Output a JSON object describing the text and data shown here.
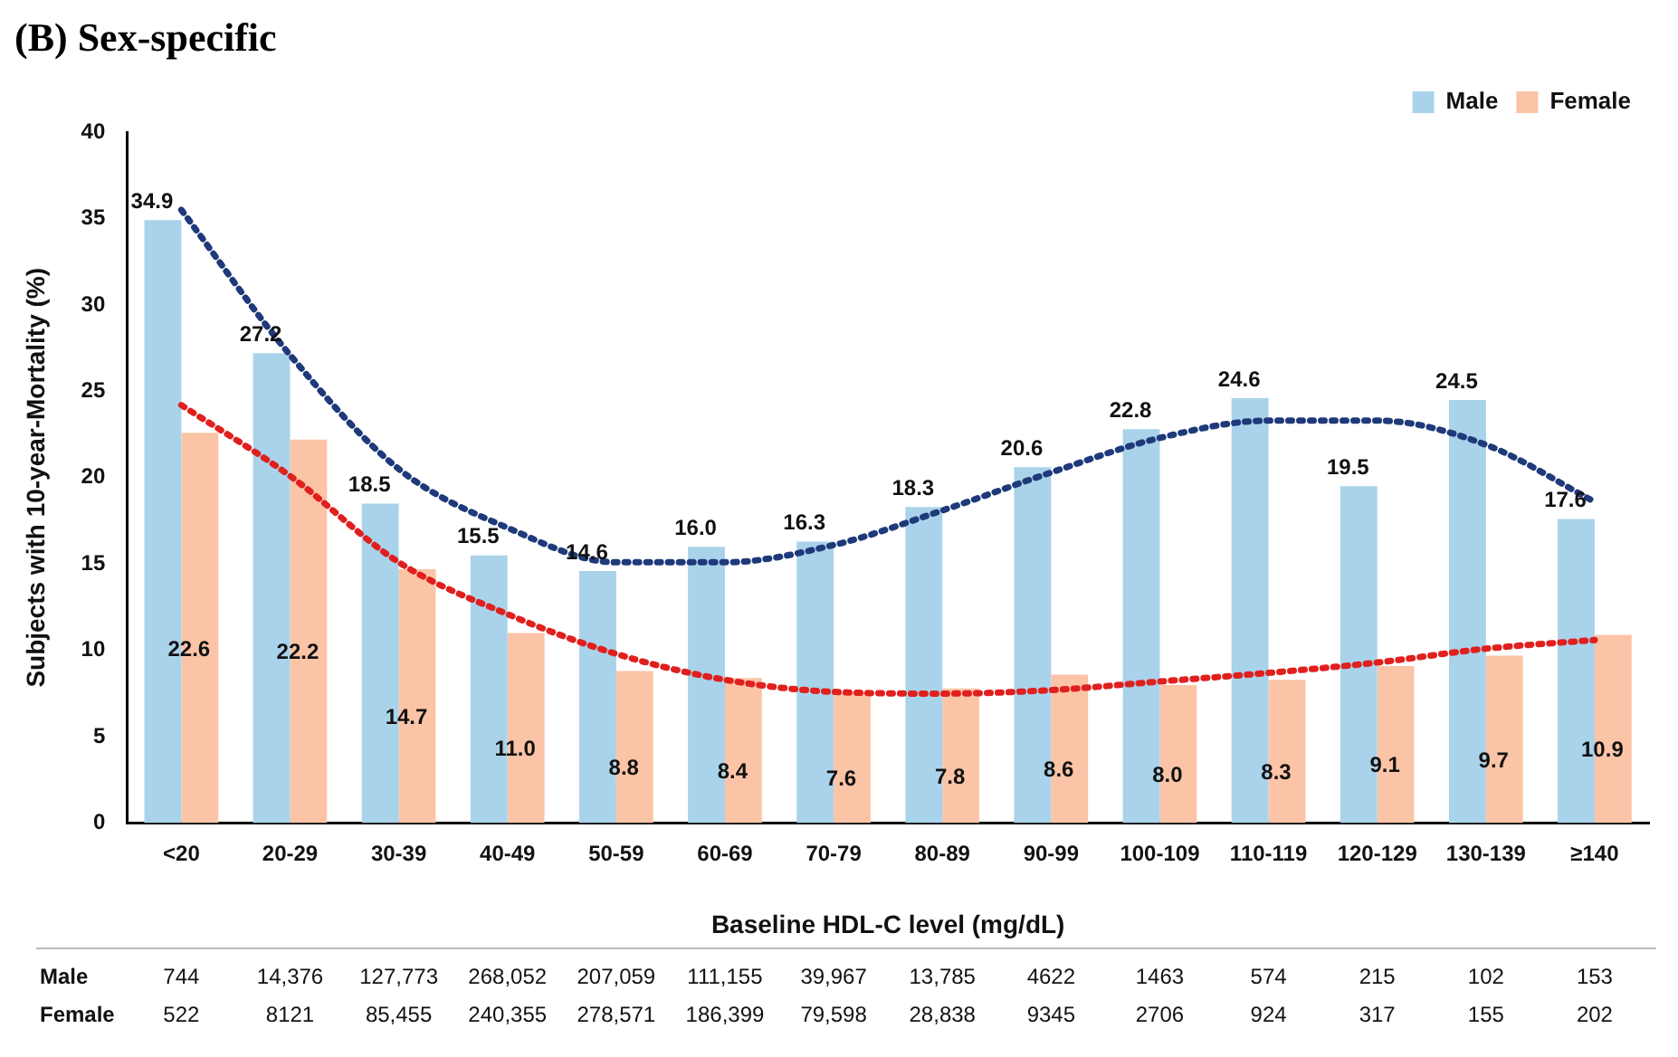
{
  "chart_data": {
    "type": "bar",
    "title": "(B) Sex-specific",
    "xlabel": "Baseline HDL-C level (mg/dL)",
    "ylabel": "Subjects with 10-year-Mortality (%)",
    "categories": [
      "<20",
      "20-29",
      "30-39",
      "40-49",
      "50-59",
      "60-69",
      "70-79",
      "80-89",
      "90-99",
      "100-109",
      "110-119",
      "120-129",
      "130-139",
      "≥140"
    ],
    "series": [
      {
        "name": "Male",
        "color": "#a9d3ea",
        "values": [
          34.9,
          27.2,
          18.5,
          15.5,
          14.6,
          16.0,
          16.3,
          18.3,
          20.6,
          22.8,
          24.6,
          19.5,
          24.5,
          17.6
        ],
        "value_labels": [
          "34.9",
          "27.2",
          "18.5",
          "15.5",
          "14.6",
          "16.0",
          "16.3",
          "18.3",
          "20.6",
          "22.8",
          "24.6",
          "19.5",
          "24.5",
          "17.6"
        ]
      },
      {
        "name": "Female",
        "color": "#fbc4a6",
        "values": [
          22.6,
          22.2,
          14.7,
          11.0,
          8.8,
          8.4,
          7.6,
          7.8,
          8.6,
          8.0,
          8.3,
          9.1,
          9.7,
          10.9
        ],
        "value_labels": [
          "22.6",
          "22.2",
          "14.7",
          "11.0",
          "8.8",
          "8.4",
          "7.6",
          "7.8",
          "8.6",
          "8.0",
          "8.3",
          "9.1",
          "9.7",
          "10.9"
        ]
      },
      {
        "type": "line",
        "color": "#1f3a7a",
        "line_style": "dotted",
        "marker": "none",
        "values": [
          35.5,
          27.1,
          20.5,
          17.1,
          15.1,
          15.1,
          16.1,
          18.1,
          20.3,
          22.3,
          23.3,
          23.3,
          21.9,
          18.6
        ]
      },
      {
        "type": "line",
        "color": "#e0201e",
        "line_style": "dotted",
        "marker": "none",
        "values": [
          24.2,
          20.1,
          15.1,
          12.1,
          9.8,
          8.3,
          7.6,
          7.5,
          7.7,
          8.2,
          8.7,
          9.3,
          10.1,
          10.6
        ]
      }
    ],
    "ylim": [
      0,
      40
    ],
    "yticks": [
      0,
      5,
      10,
      15,
      20,
      25,
      30,
      35,
      40
    ],
    "grid": false,
    "legend": "top right",
    "annotations": [
      "Male",
      "744",
      "14,376",
      "127,773",
      "268,052",
      "207,059",
      "111,155",
      "39,967",
      "13,785",
      "4622",
      "1463",
      "574",
      "215",
      "102",
      "153",
      "Female",
      "522",
      "8121",
      "85,455",
      "240,355",
      "278,571",
      "186,399",
      "79,598",
      "28,838",
      "9345",
      "2706",
      "924",
      "317",
      "155",
      "202"
    ]
  }
}
